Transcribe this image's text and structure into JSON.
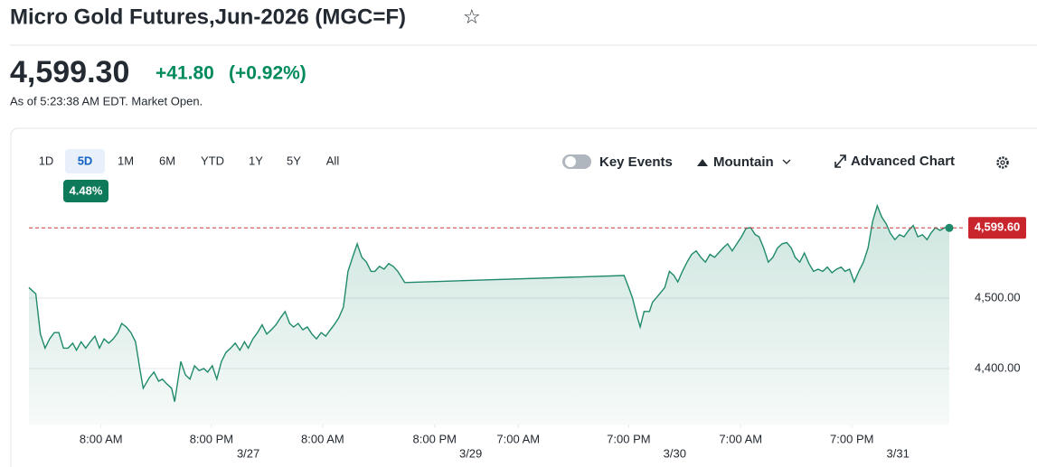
{
  "header": {
    "title": "Micro Gold Futures,Jun-2026 (MGC=F)",
    "star": "☆"
  },
  "quote": {
    "price": "4,599.30",
    "change": "+41.80",
    "change_percent": "(+0.92%)",
    "as_of": "As of 5:23:38 AM EDT. Market Open."
  },
  "ranges": [
    "1D",
    "5D",
    "1M",
    "6M",
    "YTD",
    "1Y",
    "5Y",
    "All"
  ],
  "selected_range": 1,
  "range_change": "4.48%",
  "toolbar": {
    "key_events": "Key Events",
    "chart_type": "Mountain",
    "advanced": "Advanced Chart"
  },
  "chart_data": {
    "type": "area",
    "color": "#1f8a6b",
    "x": [
      0,
      0.9,
      1.5,
      2.1,
      2.7,
      3.3,
      3.9,
      4.5,
      5.1,
      5.7,
      6.2,
      6.8,
      7.4,
      8.0,
      8.6,
      9.2,
      9.8,
      10.4,
      11.0,
      11.6,
      12.1,
      12.7,
      13.3,
      13.9,
      14.5,
      14.9,
      15.7,
      16.3,
      16.9,
      17.4,
      18.0,
      18.6,
      19.0,
      19.8,
      20.4,
      21.0,
      21.6,
      22.2,
      22.8,
      23.3,
      23.9,
      24.5,
      25.1,
      25.7,
      26.3,
      26.9,
      27.5,
      28.1,
      28.6,
      29.2,
      29.8,
      30.4,
      31.0,
      31.6,
      32.2,
      32.8,
      33.4,
      34.0,
      34.5,
      35.1,
      35.7,
      36.3,
      36.9,
      37.5,
      38.1,
      38.7,
      39.3,
      39.8,
      40.4,
      41.0,
      41.6,
      42.2,
      42.8,
      43.4,
      44.0,
      44.6,
      45.1,
      45.7,
      46.3,
      46.9,
      47.5,
      48.1,
      49.0,
      77.6,
      78.2,
      78.7,
      79.3,
      79.7,
      80.2,
      80.9,
      81.3,
      82.0,
      82.9,
      83.5,
      84.1,
      84.6,
      85.2,
      85.8,
      86.4,
      87.0,
      87.6,
      88.2,
      88.8,
      89.4,
      89.9,
      90.5,
      91.1,
      91.7,
      92.3,
      92.9,
      93.5,
      94.1,
      94.7,
      95.2,
      95.8,
      96.4,
      97.0,
      97.6,
      98.2,
      98.8,
      99.4,
      99.9,
      100.5,
      101.1,
      101.7,
      102.3,
      102.9,
      103.5,
      104.1,
      104.7,
      105.3,
      105.9,
      106.4,
      107.0,
      107.6,
      108.2,
      108.8,
      109.4,
      110.0,
      110.6,
      111.2,
      111.8,
      112.3,
      112.9,
      113.5,
      114.1,
      114.7,
      115.3,
      115.9,
      116.5,
      117.1,
      117.6,
      118.2,
      118.8,
      119.4,
      120.0
    ],
    "values": [
      4515,
      4506,
      4449,
      4429,
      4442,
      4451,
      4451,
      4429,
      4429,
      4436,
      4426,
      4438,
      4429,
      4438,
      4446,
      4429,
      4442,
      4436,
      4442,
      4451,
      4464,
      4459,
      4451,
      4438,
      4397,
      4372,
      4387,
      4395,
      4382,
      4385,
      4378,
      4372,
      4353,
      4410,
      4391,
      4385,
      4404,
      4397,
      4400,
      4395,
      4404,
      4385,
      4410,
      4423,
      4429,
      4436,
      4426,
      4438,
      4429,
      4442,
      4451,
      4462,
      4449,
      4455,
      4462,
      4472,
      4481,
      4464,
      4459,
      4464,
      4455,
      4459,
      4449,
      4442,
      4451,
      4446,
      4455,
      4462,
      4472,
      4487,
      4538,
      4558,
      4577,
      4558,
      4551,
      4538,
      4538,
      4545,
      4541,
      4549,
      4545,
      4538,
      4522,
      4532,
      4515,
      4500,
      4474,
      4459,
      4481,
      4481,
      4494,
      4503,
      4515,
      4538,
      4532,
      4523,
      4538,
      4551,
      4562,
      4567,
      4558,
      4551,
      4562,
      4558,
      4564,
      4571,
      4577,
      4567,
      4577,
      4587,
      4599,
      4600,
      4590,
      4587,
      4571,
      4551,
      4558,
      4571,
      4577,
      4579,
      4571,
      4558,
      4551,
      4564,
      4549,
      4538,
      4541,
      4538,
      4544,
      4536,
      4541,
      4544,
      4538,
      4541,
      4523,
      4538,
      4551,
      4571,
      4609,
      4631,
      4615,
      4605,
      4592,
      4583,
      4590,
      4587,
      4596,
      4603,
      4587,
      4590,
      4583,
      4592,
      4600,
      4596,
      4600,
      4599.6
    ],
    "xlim": [
      0,
      120
    ],
    "ylim": [
      4320,
      4640
    ],
    "yticks": [
      {
        "value": 4500,
        "label": "4,500.00"
      },
      {
        "value": 4400,
        "label": "4,400.00"
      }
    ],
    "xticks": [
      {
        "value": 9.4,
        "label": "8:00 AM"
      },
      {
        "value": 23.8,
        "label": "8:00 PM"
      },
      {
        "value": 38.3,
        "label": "8:00 AM"
      },
      {
        "value": 52.9,
        "label": "8:00 PM"
      },
      {
        "value": 63.8,
        "label": "7:00 AM"
      },
      {
        "value": 78.2,
        "label": "7:00 PM"
      },
      {
        "value": 92.8,
        "label": "7:00 AM"
      },
      {
        "value": 107.3,
        "label": "7:00 PM"
      }
    ],
    "date_ticks": [
      {
        "value": 28.6,
        "label": "3/27"
      },
      {
        "value": 57.6,
        "label": "3/29"
      },
      {
        "value": 84.2,
        "label": "3/30"
      },
      {
        "value": 113.3,
        "label": "3/31"
      }
    ],
    "current": {
      "value": 4599.6,
      "label": "4,599.60"
    },
    "grid": true
  }
}
